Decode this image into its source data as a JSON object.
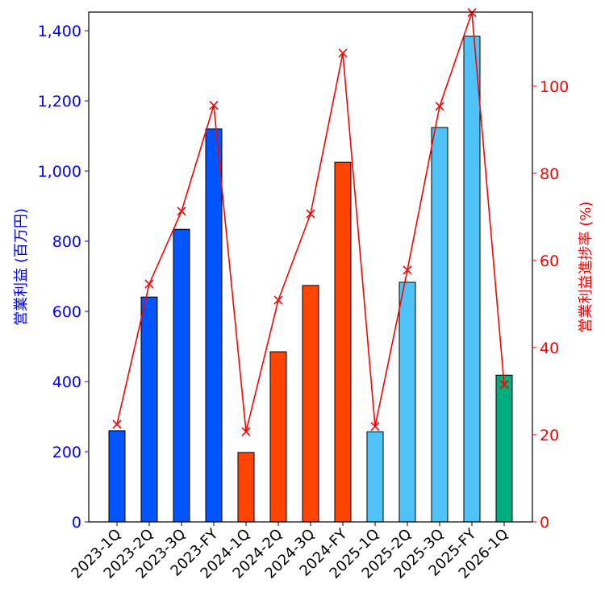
{
  "chart_data": {
    "type": "bar",
    "title": "",
    "xlabel": "",
    "categories": [
      "2023-1Q",
      "2023-2Q",
      "2023-3Q",
      "2023-FY",
      "2024-1Q",
      "2024-2Q",
      "2024-3Q",
      "2024-FY",
      "2025-1Q",
      "2025-2Q",
      "2025-3Q",
      "2025-FY",
      "2026-1Q"
    ],
    "series": [
      {
        "name": "営業利益 (百万円)",
        "type": "bar",
        "axis": "left",
        "values": [
          260,
          641,
          834,
          1120,
          198,
          485,
          674,
          1025,
          257,
          683,
          1124,
          1384,
          418
        ],
        "colors": [
          "#0055ff",
          "#0055ff",
          "#0055ff",
          "#0055ff",
          "#ff4500",
          "#ff4500",
          "#ff4500",
          "#ff4500",
          "#4fc3f7",
          "#4fc3f7",
          "#4fc3f7",
          "#4fc3f7",
          "#00ad7c"
        ]
      },
      {
        "name": "営業利益進捗率 (%)",
        "type": "line",
        "axis": "right",
        "marker": "x",
        "color": "#ff0000",
        "values": [
          22.4,
          54.6,
          71.3,
          95.6,
          20.7,
          50.9,
          70.7,
          107.6,
          21.9,
          57.8,
          95.4,
          116.9,
          31.5
        ]
      }
    ],
    "ylabel": "営業利益 (百万円)",
    "ylabel_right": "営業利益進捗率 (%)",
    "ylim": [
      0,
      1453
    ],
    "ylim_right": [
      0,
      117
    ],
    "yticks": [
      0,
      200,
      400,
      600,
      800,
      1000,
      1200,
      1400
    ],
    "ytick_labels": [
      "0",
      "200",
      "400",
      "600",
      "800",
      "1,000",
      "1,200",
      "1,400"
    ],
    "yticks_right": [
      0,
      20,
      40,
      60,
      80,
      100
    ],
    "ytick_labels_right": [
      "0",
      "20",
      "40",
      "60",
      "80",
      "100"
    ],
    "left_axis_color": "#0000ff",
    "right_axis_color": "#ff0000",
    "grid": false,
    "legend": "none"
  }
}
